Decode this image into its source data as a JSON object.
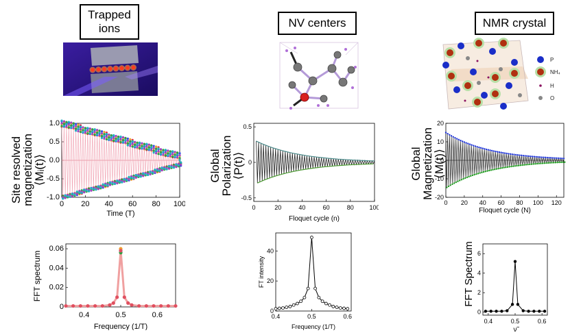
{
  "headers": {
    "trapped": [
      "Trapped",
      "ions"
    ],
    "nv": "NV centers",
    "nmr": "NMR crystal"
  },
  "ion_chain_count": 8,
  "crystal_legend": [
    "P",
    "NH₄",
    "H",
    "O"
  ],
  "colors": {
    "ion_red": "#e03040",
    "nv_upper": "#4a8a8a",
    "nv_lower": "#4a9a30",
    "nmr_upper": "#1f35d8",
    "nmr_lower": "#1c9a1c",
    "peak_red": "#e05060"
  },
  "chart_data": [
    {
      "id": "site-resolved-magnetization",
      "type": "scatter",
      "ylabel_lines": [
        "Site resolved",
        "magnetization",
        "⟨Mᵢ(t)⟩"
      ],
      "xlabel": "Time (T)",
      "xlim": [
        0,
        100
      ],
      "ylim": [
        -1,
        1
      ],
      "xticks": [
        0,
        20,
        40,
        60,
        80,
        100
      ],
      "yticks": [
        "-1.0",
        "-0.5",
        "0.0",
        "0.5",
        "1.0"
      ],
      "envelope": {
        "x": [
          0,
          100
        ],
        "y": [
          1.0,
          0.1
        ]
      },
      "oscillation_period": 2,
      "series_colors": [
        "#e03040",
        "#f0a030",
        "#3050e0",
        "#30a040",
        "#a040c0",
        "#20b0c0"
      ]
    },
    {
      "id": "global-polarization",
      "type": "line",
      "ylabel_lines": [
        "Global",
        "Polarization",
        "⟨P(t)⟩"
      ],
      "xlabel": "Floquet cycle (n)",
      "xlim": [
        0,
        100
      ],
      "ylim": [
        -0.55,
        0.55
      ],
      "xticks": [
        0,
        20,
        40,
        60,
        80,
        100
      ],
      "yticks": [
        "-0.5",
        "0",
        "0.5"
      ],
      "envelope": {
        "x": [
          2,
          100
        ],
        "y": [
          0.3,
          0.02
        ]
      }
    },
    {
      "id": "global-magnetization",
      "type": "line",
      "ylabel_lines": [
        "Global",
        "Magnetization",
        "⟨M(t)⟩"
      ],
      "xlabel": "Floquet cycle (N)",
      "xlim": [
        0,
        128
      ],
      "ylim": [
        -20,
        20
      ],
      "xticks": [
        0,
        20,
        40,
        60,
        80,
        100,
        120
      ],
      "yticks": [
        "-20",
        "-10",
        "0",
        "10",
        "20"
      ],
      "envelope": {
        "x": [
          0,
          128
        ],
        "y": [
          15,
          1
        ]
      }
    },
    {
      "id": "fft-spectrum-ions",
      "type": "scatter",
      "ylabel": "FFT spectrum",
      "xlabel": "Frequency  (1/T)",
      "xlim": [
        0.35,
        0.65
      ],
      "ylim": [
        0,
        0.065
      ],
      "xticks": [
        "0.4",
        "0.5",
        "0.6"
      ],
      "yticks": [
        "0",
        "0.02",
        "0.04",
        "0.06"
      ],
      "x": [
        0.35,
        0.37,
        0.39,
        0.41,
        0.43,
        0.45,
        0.47,
        0.48,
        0.49,
        0.5,
        0.51,
        0.52,
        0.53,
        0.55,
        0.57,
        0.59,
        0.61,
        0.63,
        0.65
      ],
      "y": [
        0.001,
        0.001,
        0.001,
        0.001,
        0.001,
        0.001,
        0.002,
        0.004,
        0.01,
        0.058,
        0.01,
        0.004,
        0.002,
        0.001,
        0.001,
        0.001,
        0.001,
        0.001,
        0.001
      ]
    },
    {
      "id": "fft-intensity-nv",
      "type": "line",
      "ylabel": "FT intensity",
      "xlabel": "Frequency (1/T)",
      "xlim": [
        0.4,
        0.61
      ],
      "ylim": [
        0,
        52
      ],
      "xticks": [
        "0.4",
        "0.5",
        "0.6"
      ],
      "yticks": [
        "0",
        "20",
        "40"
      ],
      "x": [
        0.4,
        0.41,
        0.42,
        0.43,
        0.44,
        0.45,
        0.46,
        0.47,
        0.48,
        0.49,
        0.5,
        0.51,
        0.52,
        0.53,
        0.54,
        0.55,
        0.56,
        0.57,
        0.58,
        0.59,
        0.6
      ],
      "y": [
        1.5,
        1.8,
        2,
        2.5,
        3,
        4,
        5,
        6.5,
        9,
        15,
        49,
        15,
        9,
        6.5,
        5,
        4,
        3,
        2.5,
        2,
        1.8,
        1.5
      ]
    },
    {
      "id": "fft-spectrum-nmr",
      "type": "line",
      "ylabel": "FFT Spectrum",
      "xlabel": "ν̃",
      "xlim": [
        0.38,
        0.62
      ],
      "ylim": [
        -0.3,
        7
      ],
      "xticks": [
        "0.4",
        "0.5",
        "0.6"
      ],
      "yticks": [
        "0",
        "2",
        "4",
        "6"
      ],
      "x": [
        0.39,
        0.41,
        0.43,
        0.45,
        0.47,
        0.49,
        0.5,
        0.51,
        0.53,
        0.55,
        0.57,
        0.59,
        0.61
      ],
      "y": [
        0.1,
        0.1,
        0.1,
        0.1,
        0.15,
        0.8,
        5.2,
        0.8,
        0.15,
        0.1,
        0.1,
        0.1,
        0.1
      ]
    }
  ]
}
